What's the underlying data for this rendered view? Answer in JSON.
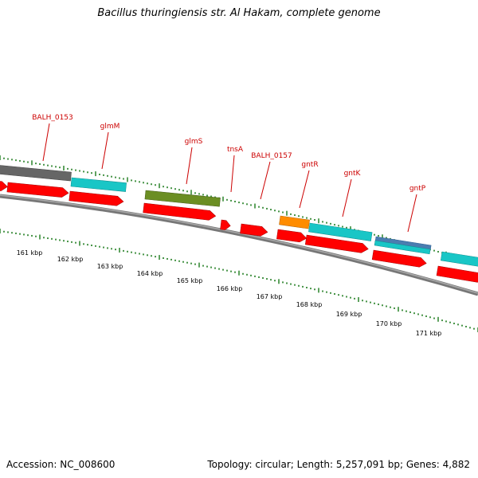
{
  "title": "Bacillus thuringiensis str. Al Hakam, complete genome",
  "footer": {
    "accession": "Accession: NC_008600",
    "summary": "Topology: circular; Length: 5,257,091 bp; Genes: 4,882"
  },
  "colors": {
    "cds": "#ff0000",
    "gene_label": "#cc0000",
    "ticks": "#1a7a1a",
    "backbone": "#777777",
    "rna": "#19c6c6",
    "olive": "#6b8e23",
    "orange": "#ff8c00",
    "steel": "#4a7db0",
    "darkgray": "#555555"
  },
  "scale_labels": [
    "161 kbp",
    "162 kbp",
    "163 kbp",
    "164 kbp",
    "165 kbp",
    "166 kbp",
    "167 kbp",
    "168 kbp",
    "169 kbp",
    "170 kbp",
    "171 kbp"
  ],
  "genes": [
    "BALH_0153",
    "glmM",
    "glmS",
    "tnsA",
    "BALH_0157",
    "gntR",
    "gntK",
    "gntP"
  ]
}
